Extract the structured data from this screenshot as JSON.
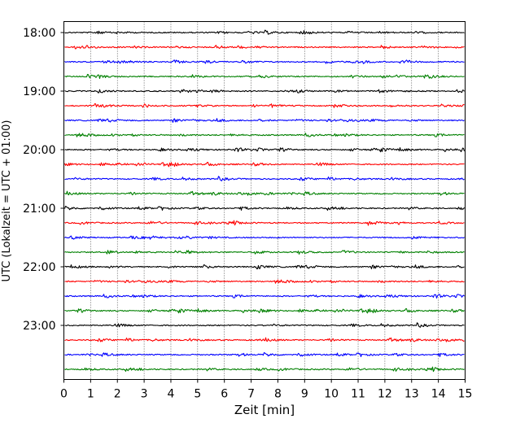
{
  "chart_data": {
    "type": "line",
    "title": "",
    "xlabel": "Zeit  [min]",
    "ylabel": "UTC (Lokalzeit = UTC + 01:00)",
    "xlim": [
      0,
      15
    ],
    "x_ticks": [
      0,
      1,
      2,
      3,
      4,
      5,
      6,
      7,
      8,
      9,
      10,
      11,
      12,
      13,
      14,
      15
    ],
    "x_tick_labels": [
      "0",
      "1",
      "2",
      "3",
      "4",
      "5",
      "6",
      "7",
      "8",
      "9",
      "10",
      "11",
      "12",
      "13",
      "14",
      "15"
    ],
    "y_tick_labels": [
      "18:00",
      "19:00",
      "20:00",
      "21:00",
      "22:00",
      "23:00"
    ],
    "grid": "vertical dotted lines at each minute",
    "traces_per_hour": 4,
    "trace_minutes": 15,
    "color_cycle": [
      "#000000",
      "#ff0000",
      "#0000ff",
      "#008000"
    ],
    "series": [
      {
        "start": "18:00",
        "color": "#000000"
      },
      {
        "start": "18:15",
        "color": "#ff0000"
      },
      {
        "start": "18:30",
        "color": "#0000ff"
      },
      {
        "start": "18:45",
        "color": "#008000"
      },
      {
        "start": "19:00",
        "color": "#000000"
      },
      {
        "start": "19:15",
        "color": "#ff0000"
      },
      {
        "start": "19:30",
        "color": "#0000ff"
      },
      {
        "start": "19:45",
        "color": "#008000"
      },
      {
        "start": "20:00",
        "color": "#000000"
      },
      {
        "start": "20:15",
        "color": "#ff0000"
      },
      {
        "start": "20:30",
        "color": "#0000ff"
      },
      {
        "start": "20:45",
        "color": "#008000"
      },
      {
        "start": "21:00",
        "color": "#000000"
      },
      {
        "start": "21:15",
        "color": "#ff0000"
      },
      {
        "start": "21:30",
        "color": "#0000ff"
      },
      {
        "start": "21:45",
        "color": "#008000"
      },
      {
        "start": "22:00",
        "color": "#000000"
      },
      {
        "start": "22:15",
        "color": "#ff0000"
      },
      {
        "start": "22:30",
        "color": "#0000ff"
      },
      {
        "start": "22:45",
        "color": "#008000"
      },
      {
        "start": "23:00",
        "color": "#000000"
      },
      {
        "start": "23:15",
        "color": "#ff0000"
      },
      {
        "start": "23:30",
        "color": "#0000ff"
      },
      {
        "start": "23:45",
        "color": "#008000"
      }
    ]
  }
}
